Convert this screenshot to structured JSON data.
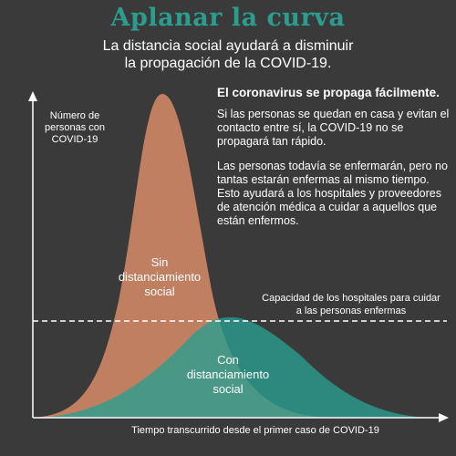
{
  "title": "Aplanar la curva",
  "subtitle_line1": "La distancia social ayudará a disminuir",
  "subtitle_line2": "la propagación de la COVID-19.",
  "y_axis_label": [
    "Número de",
    "personas con",
    "COVID-19"
  ],
  "x_axis_label": "Tiempo transcurrido desde el primer caso de COVID-19",
  "info": {
    "heading": "El coronavirus se propaga fácilmente.",
    "paragraph1": "Si las personas se quedan en casa y evitan el contacto entre sí, la COVID-19 no se propagará tan rápido.",
    "paragraph2": "Las personas todavía se enfermarán, pero no tantas estarán enfermas al mismo tiempo. Esto ayudará a los hospitales y proveedores de atención médica a cuidar a aquellos que están enfermos."
  },
  "capacity_label": [
    "Capacidad de los hospitales para cuidar",
    "a las personas enfermas"
  ],
  "curve_without": {
    "label": [
      "Sin",
      "distanciamiento",
      "social"
    ],
    "color": "#d98c68"
  },
  "curve_with": {
    "label": [
      "Con",
      "distanciamiento",
      "social"
    ],
    "color": "#2a9d8f"
  },
  "colors": {
    "background": "#3a3a3a",
    "title": "#2a9d8f",
    "text": "#ffffff"
  }
}
